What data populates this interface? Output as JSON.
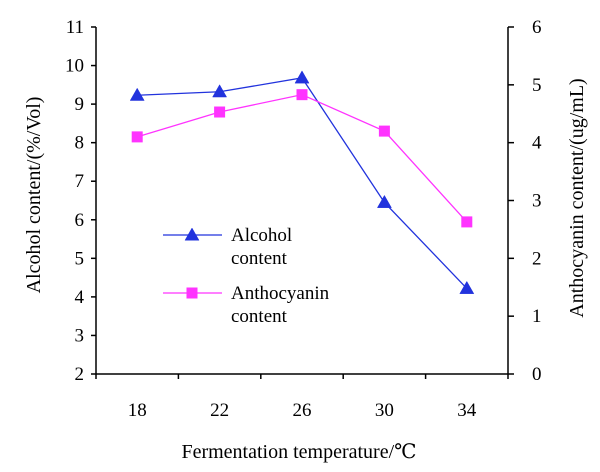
{
  "chart_data": {
    "type": "line",
    "categories": [
      "18",
      "22",
      "26",
      "30",
      "34"
    ],
    "xlabel": "Fermentation temperature/℃",
    "ylabel_left": "Alcohol content/(%/Vol)",
    "ylabel_right": "Anthocyanin content/(ug/mL)",
    "ylim_left": [
      2,
      11
    ],
    "yticks_left": [
      2,
      3,
      4,
      5,
      6,
      7,
      8,
      9,
      10,
      11
    ],
    "ylim_right": [
      0,
      6
    ],
    "yticks_right": [
      0,
      1,
      2,
      3,
      4,
      5,
      6
    ],
    "legend_position": "center-left",
    "series": [
      {
        "name_lines": [
          "Alcohol",
          "content"
        ],
        "axis": "left",
        "marker": "triangle",
        "color": "#2233dd",
        "values": [
          9.23,
          9.32,
          9.68,
          6.45,
          4.22
        ]
      },
      {
        "name_lines": [
          "Anthocyanin",
          "content"
        ],
        "axis": "right",
        "marker": "square",
        "color": "#ff33ff",
        "values": [
          4.1,
          4.53,
          4.83,
          4.2,
          2.63
        ]
      }
    ]
  }
}
